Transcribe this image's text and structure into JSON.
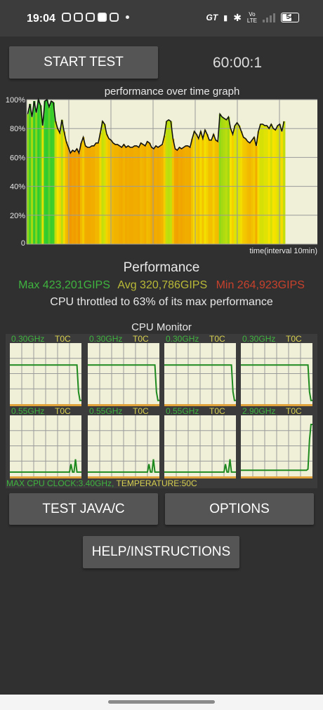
{
  "status_bar": {
    "time": "19:04",
    "left_icons": [
      "instagram-icon",
      "instagram-icon",
      "video-icon",
      "cloud-icon",
      "instagram-icon"
    ],
    "right_icons": [
      "gt-icon",
      "vibrate-icon",
      "bluetooth-icon",
      "volte-icon",
      "signal-icon",
      "battery-icon"
    ],
    "gt": "GT",
    "volte_top": "Vo",
    "volte_bottom": "LTE",
    "battery": "54"
  },
  "controls": {
    "start_label": "START TEST",
    "timer": "60:00:1",
    "java_label": "TEST JAVA/C",
    "options_label": "OPTIONS",
    "help_label": "HELP/INSTRUCTIONS"
  },
  "performance": {
    "graph_title": "performance over time graph",
    "heading": "Performance",
    "max": "Max 423,201GIPS",
    "avg": "Avg 320,786GIPS",
    "min": "Min 264,923GIPS",
    "throttle": "CPU throttled to 63% of its max performance",
    "x_label": "time(interval 10min)",
    "y_ticks": [
      "100%",
      "80%",
      "60%",
      "40%",
      "20%",
      "0"
    ],
    "y_tick_values": [
      100,
      80,
      60,
      40,
      20,
      0
    ],
    "colors": {
      "high": "#2ecc2e",
      "mid": "#f4e400",
      "low": "#f08a00",
      "plot_bg": "#f0f0d8"
    }
  },
  "chart_data": {
    "type": "area",
    "title": "performance over time graph",
    "xlabel": "time(interval 10min)",
    "ylabel": "",
    "ylim": [
      0,
      100
    ],
    "y_unit": "%",
    "grid": true,
    "x": [
      0,
      1,
      2,
      3,
      4,
      5,
      6,
      7,
      8,
      9,
      10,
      11,
      12,
      13,
      14,
      15,
      16,
      17,
      18,
      19,
      20,
      21,
      22,
      23,
      24,
      25,
      26,
      27,
      28,
      29,
      30,
      31,
      32,
      33,
      34,
      35,
      36,
      37,
      38,
      39,
      40,
      41,
      42,
      43,
      44,
      45,
      46,
      47,
      48,
      49,
      50,
      51,
      52,
      53,
      54,
      55,
      56,
      57,
      58,
      59,
      60,
      61,
      62,
      63,
      64,
      65,
      66,
      67,
      68,
      69,
      70,
      71,
      72,
      73,
      74,
      75,
      76,
      77,
      78,
      79,
      80,
      81,
      82,
      83,
      84,
      85,
      86,
      87,
      88,
      89,
      90,
      91,
      92,
      93,
      94,
      95,
      96,
      97,
      98,
      99,
      100,
      101,
      102,
      103,
      104,
      105,
      106,
      107,
      108,
      109,
      110,
      111,
      112,
      113,
      114,
      115,
      116,
      117,
      118,
      119,
      120
    ],
    "values": [
      90,
      97,
      88,
      99,
      91,
      100,
      96,
      82,
      99,
      100,
      95,
      99,
      98,
      85,
      80,
      77,
      86,
      78,
      71,
      67,
      63,
      65,
      64,
      66,
      63,
      70,
      74,
      68,
      67,
      67,
      68,
      68,
      70,
      70,
      77,
      85,
      83,
      76,
      73,
      72,
      70,
      69,
      69,
      68,
      67,
      69,
      67,
      68,
      67,
      67,
      68,
      68,
      67,
      70,
      69,
      68,
      71,
      70,
      67,
      66,
      68,
      67,
      68,
      69,
      75,
      85,
      86,
      85,
      73,
      66,
      65,
      67,
      66,
      67,
      68,
      68,
      67,
      73,
      78,
      76,
      73,
      78,
      73,
      79,
      76,
      72,
      72,
      76,
      72,
      71,
      90,
      88,
      87,
      86,
      88,
      80,
      76,
      82,
      84,
      82,
      78,
      74,
      73,
      71,
      70,
      72,
      74,
      68,
      78,
      83,
      83,
      82,
      82,
      80,
      83,
      80,
      79,
      82,
      83,
      78,
      85
    ]
  },
  "cpu_monitor": {
    "title": "CPU Monitor",
    "footer_clock": "MAX CPU CLOCK:3.40GHz, ",
    "footer_temp": "TEMPERATURE:50C",
    "cores": [
      {
        "freq": "0.30GHz",
        "temp": "T0C",
        "trace": [
          0.64,
          0.64,
          0.64,
          0.64,
          0.64,
          0.64,
          0.64,
          0.64,
          0.64,
          0.64,
          0.64,
          0.64,
          0.64,
          0.64,
          0.64,
          0.64,
          0.64,
          0.64,
          0.64,
          0.64,
          0.64,
          0.64,
          0.64,
          0.64,
          0.64,
          0.64,
          0.64,
          0.64,
          0.64,
          0.64,
          0.64,
          0.64,
          0.64,
          0.64,
          0.64,
          0.64,
          0.64,
          0.64,
          0.64,
          0.64,
          0.64,
          0.64,
          0.64,
          0.64,
          0.64,
          0.64,
          0.2,
          0.06,
          0.06
        ]
      },
      {
        "freq": "0.30GHz",
        "temp": "T0C",
        "trace": [
          0.64,
          0.64,
          0.64,
          0.64,
          0.64,
          0.64,
          0.64,
          0.64,
          0.64,
          0.64,
          0.64,
          0.64,
          0.64,
          0.64,
          0.64,
          0.64,
          0.64,
          0.64,
          0.64,
          0.64,
          0.64,
          0.64,
          0.64,
          0.64,
          0.64,
          0.64,
          0.64,
          0.64,
          0.64,
          0.64,
          0.64,
          0.64,
          0.64,
          0.64,
          0.64,
          0.64,
          0.64,
          0.64,
          0.64,
          0.64,
          0.64,
          0.64,
          0.64,
          0.64,
          0.64,
          0.64,
          0.2,
          0.06,
          0.06
        ]
      },
      {
        "freq": "0.30GHz",
        "temp": "T0C",
        "trace": [
          0.64,
          0.64,
          0.64,
          0.64,
          0.64,
          0.64,
          0.64,
          0.64,
          0.64,
          0.64,
          0.64,
          0.64,
          0.64,
          0.64,
          0.64,
          0.64,
          0.64,
          0.64,
          0.64,
          0.64,
          0.64,
          0.64,
          0.64,
          0.64,
          0.64,
          0.64,
          0.64,
          0.64,
          0.64,
          0.64,
          0.64,
          0.64,
          0.64,
          0.64,
          0.64,
          0.64,
          0.64,
          0.64,
          0.64,
          0.64,
          0.64,
          0.64,
          0.64,
          0.64,
          0.64,
          0.64,
          0.2,
          0.06,
          0.06
        ]
      },
      {
        "freq": "0.30GHz",
        "temp": "T0C",
        "trace": [
          0.64,
          0.64,
          0.64,
          0.64,
          0.64,
          0.64,
          0.64,
          0.64,
          0.64,
          0.64,
          0.64,
          0.64,
          0.64,
          0.64,
          0.64,
          0.64,
          0.64,
          0.64,
          0.64,
          0.64,
          0.64,
          0.64,
          0.64,
          0.64,
          0.64,
          0.64,
          0.64,
          0.64,
          0.64,
          0.64,
          0.64,
          0.64,
          0.64,
          0.64,
          0.64,
          0.64,
          0.64,
          0.64,
          0.64,
          0.64,
          0.64,
          0.64,
          0.64,
          0.64,
          0.64,
          0.64,
          0.2,
          0.06,
          0.06
        ]
      },
      {
        "freq": "0.55GHz",
        "temp": "T0C",
        "trace": [
          0.07,
          0.07,
          0.07,
          0.07,
          0.07,
          0.07,
          0.07,
          0.07,
          0.07,
          0.07,
          0.07,
          0.07,
          0.07,
          0.07,
          0.07,
          0.07,
          0.07,
          0.07,
          0.07,
          0.07,
          0.07,
          0.07,
          0.07,
          0.07,
          0.07,
          0.07,
          0.07,
          0.07,
          0.07,
          0.07,
          0.07,
          0.07,
          0.07,
          0.07,
          0.07,
          0.07,
          0.07,
          0.07,
          0.07,
          0.07,
          0.07,
          0.2,
          0.07,
          0.07,
          0.28,
          0.07,
          0.07,
          0.07,
          0.07
        ]
      },
      {
        "freq": "0.55GHz",
        "temp": "T0C",
        "trace": [
          0.07,
          0.07,
          0.07,
          0.07,
          0.07,
          0.07,
          0.07,
          0.07,
          0.07,
          0.07,
          0.07,
          0.07,
          0.07,
          0.07,
          0.07,
          0.07,
          0.07,
          0.07,
          0.07,
          0.07,
          0.07,
          0.07,
          0.07,
          0.07,
          0.07,
          0.07,
          0.07,
          0.07,
          0.07,
          0.07,
          0.07,
          0.07,
          0.07,
          0.07,
          0.07,
          0.07,
          0.07,
          0.07,
          0.07,
          0.07,
          0.07,
          0.2,
          0.07,
          0.07,
          0.28,
          0.07,
          0.07,
          0.07,
          0.07
        ]
      },
      {
        "freq": "0.55GHz",
        "temp": "T0C",
        "trace": [
          0.07,
          0.07,
          0.07,
          0.07,
          0.07,
          0.07,
          0.07,
          0.07,
          0.07,
          0.07,
          0.07,
          0.07,
          0.07,
          0.07,
          0.07,
          0.07,
          0.07,
          0.07,
          0.07,
          0.07,
          0.07,
          0.07,
          0.07,
          0.07,
          0.07,
          0.07,
          0.07,
          0.07,
          0.07,
          0.07,
          0.07,
          0.07,
          0.07,
          0.07,
          0.07,
          0.07,
          0.07,
          0.07,
          0.07,
          0.07,
          0.07,
          0.2,
          0.07,
          0.07,
          0.28,
          0.07,
          0.07,
          0.07,
          0.07
        ]
      },
      {
        "freq": "2.90GHz",
        "temp": "T0C",
        "trace": [
          0.1,
          0.1,
          0.1,
          0.1,
          0.1,
          0.1,
          0.1,
          0.1,
          0.1,
          0.1,
          0.1,
          0.1,
          0.1,
          0.1,
          0.1,
          0.1,
          0.1,
          0.1,
          0.1,
          0.1,
          0.1,
          0.1,
          0.1,
          0.1,
          0.1,
          0.1,
          0.1,
          0.1,
          0.1,
          0.1,
          0.1,
          0.1,
          0.1,
          0.1,
          0.1,
          0.1,
          0.1,
          0.1,
          0.1,
          0.1,
          0.1,
          0.1,
          0.1,
          0.1,
          0.1,
          0.12,
          0.6,
          0.85,
          0.85
        ]
      }
    ]
  }
}
